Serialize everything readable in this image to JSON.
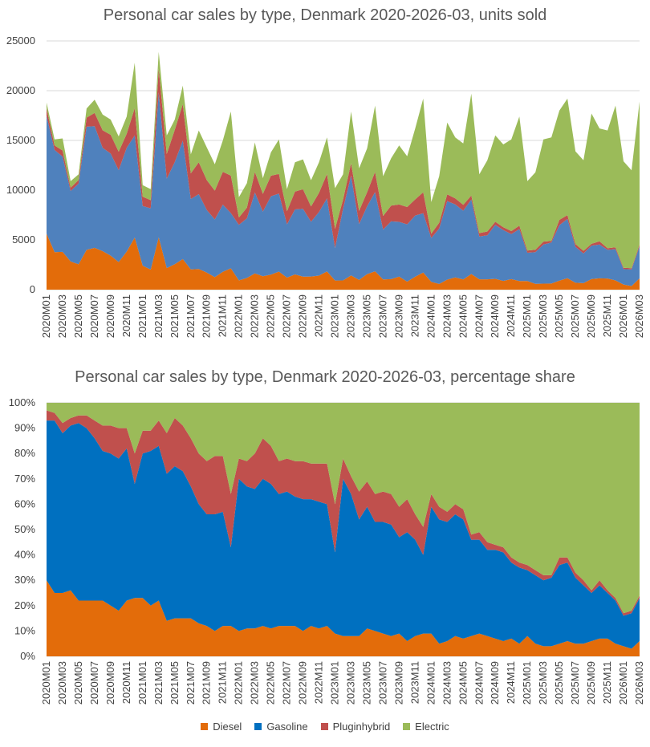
{
  "colors": {
    "Diesel": "#e36c0a",
    "Gasoline": "#4f81bd",
    "Pluginhybrid": "#c0504d",
    "Electric": "#9bbb59",
    "Gasoline_pct": "#0070c0"
  },
  "chart_data": [
    {
      "type": "area",
      "stacked": true,
      "title": "Personal car sales by type, Denmark 2020-2026-03, units sold",
      "ylim": [
        0,
        25000
      ],
      "yticks": [
        "0",
        "5000",
        "10000",
        "15000",
        "20000",
        "25000"
      ],
      "xtick_labels": [
        "2020M01",
        "2020M03",
        "2020M05",
        "2020M07",
        "2020M09",
        "2020M11",
        "2021M01",
        "2021M03",
        "2021M05",
        "2021M07",
        "2021M09",
        "2021M11",
        "2022M01",
        "2022M03",
        "2022M05",
        "2022M07",
        "2022M09",
        "2022M11",
        "2023M01",
        "2023M03",
        "2023M05",
        "2023M07",
        "2023M09",
        "2023M11",
        "2024M01",
        "2024M03",
        "2024M05",
        "2024M07",
        "2024M09",
        "2024M11",
        "2025M01",
        "2025M03",
        "2025M05",
        "2025M07",
        "2025M09",
        "2025M11",
        "2026M01",
        "2026M03"
      ],
      "series_names": [
        "Diesel",
        "Gasoline",
        "Pluginhybrid",
        "Electric"
      ],
      "totals": [
        18800,
        15100,
        15200,
        10900,
        11600,
        18200,
        19100,
        17600,
        17100,
        15400,
        17400,
        22800,
        10500,
        10100,
        23900,
        15500,
        17100,
        20500,
        13600,
        16000,
        14300,
        12600,
        15000,
        17900,
        9300,
        10700,
        14800,
        11200,
        13800,
        15100,
        10100,
        12800,
        13100,
        11000,
        12800,
        15300,
        10200,
        11600,
        17900,
        12200,
        14200,
        18500,
        11400,
        13200,
        14500,
        13400,
        16200,
        19200,
        8800,
        11400,
        16800,
        15300,
        14700,
        19700,
        11600,
        13000,
        15500,
        14600,
        15100,
        17400,
        10900,
        11800,
        15100,
        15300,
        18000,
        19200,
        13900,
        13000,
        17700,
        16200,
        16000,
        18500,
        12900,
        12000,
        18900
      ],
      "diesel_pct": [
        30,
        25,
        25,
        26,
        22,
        22,
        22,
        22,
        20,
        18,
        22,
        23,
        23,
        20,
        22,
        14,
        15,
        15,
        15,
        13,
        12,
        10,
        12,
        12,
        10,
        11,
        11,
        12,
        11,
        12,
        12,
        12,
        10,
        12,
        11,
        12,
        9,
        8,
        8,
        8,
        11,
        10,
        9,
        8,
        9,
        6,
        8,
        9,
        9,
        5,
        6,
        8,
        7,
        8,
        9,
        8,
        7,
        6,
        7,
        5,
        8,
        5,
        4,
        4,
        5,
        6,
        5,
        5,
        6,
        7,
        7,
        5,
        4,
        3,
        6
      ],
      "gasoline_pct": [
        63,
        68,
        63,
        65,
        70,
        68,
        64,
        59,
        60,
        60,
        60,
        45,
        57,
        61,
        61,
        58,
        60,
        58,
        52,
        47,
        44,
        46,
        45,
        31,
        60,
        56,
        55,
        58,
        57,
        52,
        53,
        51,
        52,
        50,
        50,
        48,
        32,
        62,
        56,
        46,
        48,
        43,
        44,
        44,
        38,
        43,
        38,
        31,
        50,
        49,
        47,
        48,
        47,
        38,
        37,
        34,
        35,
        35,
        30,
        30,
        26,
        27,
        26,
        27,
        31,
        31,
        26,
        23,
        19,
        21,
        18,
        17,
        12,
        14,
        17
      ],
      "plugin_pct": [
        4,
        3,
        4,
        3,
        3,
        5,
        7,
        10,
        11,
        12,
        8,
        12,
        9,
        8,
        10,
        16,
        19,
        18,
        19,
        20,
        21,
        23,
        22,
        21,
        8,
        10,
        14,
        16,
        15,
        13,
        13,
        14,
        15,
        14,
        15,
        16,
        19,
        8,
        7,
        11,
        10,
        11,
        12,
        12,
        12,
        13,
        10,
        11,
        5,
        5,
        4,
        4,
        4,
        2,
        3,
        3,
        2,
        2,
        2,
        2,
        2,
        2,
        2,
        1,
        3,
        2,
        2,
        2,
        1,
        2,
        1,
        1,
        1,
        1,
        1
      ]
    },
    {
      "type": "area",
      "stacked": true,
      "normalized": true,
      "title": "Personal car sales by type, Denmark 2020-2026-03, percentage share",
      "ylim": [
        0,
        100
      ],
      "yticks": [
        "0%",
        "10%",
        "20%",
        "30%",
        "40%",
        "50%",
        "60%",
        "70%",
        "80%",
        "90%",
        "100%"
      ]
    }
  ],
  "legend": [
    {
      "label": "Diesel",
      "color": "#e36c0a"
    },
    {
      "label": "Gasoline",
      "color": "#0070c0"
    },
    {
      "label": "Pluginhybrid",
      "color": "#c0504d"
    },
    {
      "label": "Electric",
      "color": "#9bbb59"
    }
  ]
}
